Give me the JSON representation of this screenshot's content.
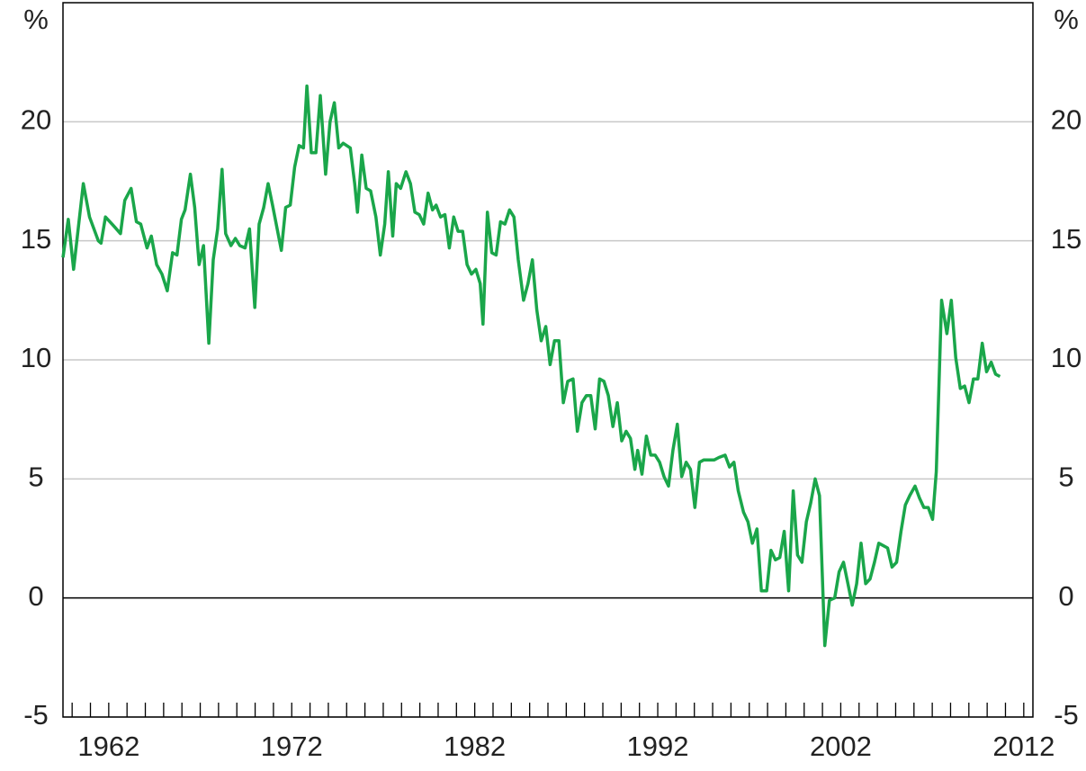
{
  "chart_data": {
    "type": "line",
    "y_label": "%",
    "y2_label": "%",
    "xlim": [
      1959.5,
      2012.5
    ],
    "xticks": [
      1962,
      1972,
      1982,
      1992,
      2002,
      2012
    ],
    "xminorticks": [
      1960,
      1961,
      1962,
      1963,
      1964,
      1965,
      1966,
      1967,
      1968,
      1969,
      1970,
      1971,
      1972,
      1973,
      1974,
      1975,
      1976,
      1977,
      1978,
      1979,
      1980,
      1981,
      1982,
      1983,
      1984,
      1985,
      1986,
      1987,
      1988,
      1989,
      1990,
      1991,
      1992,
      1993,
      1994,
      1995,
      1996,
      1997,
      1998,
      1999,
      2000,
      2001,
      2002,
      2003,
      2004,
      2005,
      2006,
      2007,
      2008,
      2009,
      2010,
      2011,
      2012
    ],
    "ylim": [
      -5,
      25
    ],
    "yticks": [
      -5,
      0,
      5,
      10,
      15,
      20
    ],
    "y2lim": [
      -5,
      25
    ],
    "y2ticks": [
      -5,
      0,
      5,
      10,
      15,
      20
    ],
    "grid": true,
    "zero_line": true,
    "x": [
      1959.5,
      1959.79,
      1960.08,
      1960.61,
      1960.95,
      1961.43,
      1961.58,
      1961.82,
      1962.3,
      1962.64,
      1962.88,
      1963.22,
      1963.51,
      1963.75,
      1964.09,
      1964.33,
      1964.62,
      1964.91,
      1965.2,
      1965.49,
      1965.73,
      1965.97,
      1966.17,
      1966.46,
      1966.7,
      1966.94,
      1967.18,
      1967.47,
      1967.71,
      1967.95,
      1968.19,
      1968.39,
      1968.68,
      1968.92,
      1969.16,
      1969.45,
      1969.69,
      1969.98,
      1970.22,
      1970.47,
      1970.71,
      1970.95,
      1971.43,
      1971.67,
      1971.92,
      1972.16,
      1972.4,
      1972.64,
      1972.83,
      1973.07,
      1973.32,
      1973.56,
      1973.85,
      1974.09,
      1974.33,
      1974.57,
      1974.81,
      1975.2,
      1975.44,
      1975.59,
      1975.83,
      1976.07,
      1976.31,
      1976.6,
      1976.84,
      1977.08,
      1977.28,
      1977.52,
      1977.71,
      1977.95,
      1978.24,
      1978.49,
      1978.73,
      1978.97,
      1979.21,
      1979.45,
      1979.69,
      1979.89,
      1980.13,
      1980.37,
      1980.61,
      1980.85,
      1981.09,
      1981.34,
      1981.58,
      1981.82,
      1982.06,
      1982.3,
      1982.45,
      1982.69,
      1982.93,
      1983.17,
      1983.41,
      1983.65,
      1983.9,
      1984.14,
      1984.38,
      1984.67,
      1984.91,
      1985.15,
      1985.39,
      1985.63,
      1985.88,
      1986.12,
      1986.36,
      1986.6,
      1986.84,
      1987.08,
      1987.37,
      1987.61,
      1987.86,
      1988.1,
      1988.34,
      1988.58,
      1988.82,
      1989.06,
      1989.3,
      1989.55,
      1989.79,
      1990.03,
      1990.27,
      1990.51,
      1990.75,
      1990.9,
      1991.14,
      1991.38,
      1991.62,
      1991.86,
      1992.1,
      1992.34,
      1992.59,
      1992.83,
      1993.07,
      1993.31,
      1993.55,
      1993.79,
      1994.03,
      1994.28,
      1994.52,
      1994.76,
      1995.09,
      1995.34,
      1995.68,
      1995.92,
      1996.16,
      1996.4,
      1996.69,
      1996.93,
      1997.17,
      1997.42,
      1997.66,
      1997.95,
      1998.19,
      1998.43,
      1998.67,
      1998.91,
      1999.15,
      1999.4,
      1999.64,
      1999.88,
      2000.12,
      2000.36,
      2000.6,
      2000.84,
      2001.13,
      2001.38,
      2001.67,
      2001.91,
      2002.15,
      2002.39,
      2002.63,
      2002.87,
      2003.11,
      2003.36,
      2003.6,
      2003.84,
      2004.08,
      2004.32,
      2004.56,
      2004.8,
      2005.05,
      2005.29,
      2005.53,
      2005.77,
      2006.06,
      2006.3,
      2006.54,
      2006.78,
      2007.02,
      2007.22,
      2007.51,
      2007.8,
      2008.04,
      2008.28,
      2008.53,
      2008.77,
      2009.01,
      2009.25,
      2009.49,
      2009.73,
      2009.97,
      2010.22,
      2010.46,
      2010.7
    ],
    "series": [
      {
        "color": "#1aa64a",
        "values": [
          14.3,
          15.9,
          13.8,
          17.4,
          16.0,
          15.0,
          14.9,
          16.0,
          15.6,
          15.3,
          16.7,
          17.2,
          15.8,
          15.7,
          14.7,
          15.2,
          14.0,
          13.6,
          12.9,
          14.5,
          14.4,
          15.9,
          16.3,
          17.8,
          16.4,
          14.0,
          14.8,
          10.7,
          14.2,
          15.5,
          18.0,
          15.3,
          14.8,
          15.1,
          14.8,
          14.7,
          15.5,
          12.2,
          15.7,
          16.4,
          17.4,
          16.5,
          14.6,
          16.4,
          16.5,
          18.1,
          19.0,
          18.9,
          21.5,
          18.7,
          18.7,
          21.1,
          17.8,
          20.0,
          20.8,
          18.9,
          19.1,
          18.9,
          17.4,
          16.2,
          18.6,
          17.2,
          17.1,
          16.0,
          14.4,
          15.7,
          17.9,
          15.2,
          17.4,
          17.2,
          17.9,
          17.4,
          16.2,
          16.1,
          15.7,
          17.0,
          16.3,
          16.5,
          16.0,
          16.1,
          14.7,
          16.0,
          15.4,
          15.4,
          14.0,
          13.6,
          13.8,
          13.2,
          11.5,
          16.2,
          14.5,
          14.4,
          15.8,
          15.7,
          16.3,
          16.0,
          14.2,
          12.5,
          13.2,
          14.2,
          12.1,
          10.8,
          11.4,
          9.8,
          10.8,
          10.8,
          8.2,
          9.1,
          9.2,
          7.0,
          8.2,
          8.5,
          8.5,
          7.1,
          9.2,
          9.1,
          8.5,
          7.2,
          8.2,
          6.6,
          7.0,
          6.7,
          5.4,
          6.2,
          5.2,
          6.8,
          6.0,
          6.0,
          5.7,
          5.1,
          4.7,
          6.2,
          7.3,
          5.1,
          5.7,
          5.4,
          3.8,
          5.7,
          5.8,
          5.8,
          5.8,
          5.9,
          6.0,
          5.5,
          5.7,
          4.5,
          3.6,
          3.2,
          2.3,
          2.9,
          0.3,
          0.3,
          2.0,
          1.6,
          1.7,
          2.8,
          0.3,
          4.5,
          1.8,
          1.5,
          3.2,
          4.0,
          5.0,
          4.3,
          -2.0,
          -0.1,
          0.0,
          1.1,
          1.5,
          0.6,
          -0.3,
          0.6,
          2.3,
          0.6,
          0.8,
          1.5,
          2.3,
          2.2,
          2.1,
          1.3,
          1.5,
          2.8,
          3.9,
          4.3,
          4.7,
          4.2,
          3.8,
          3.8,
          3.3,
          5.3,
          12.5,
          11.1,
          12.5,
          10.1,
          8.8,
          8.9,
          8.2,
          9.2,
          9.2,
          10.7,
          9.5,
          9.9,
          9.4,
          9.3
        ]
      }
    ]
  }
}
